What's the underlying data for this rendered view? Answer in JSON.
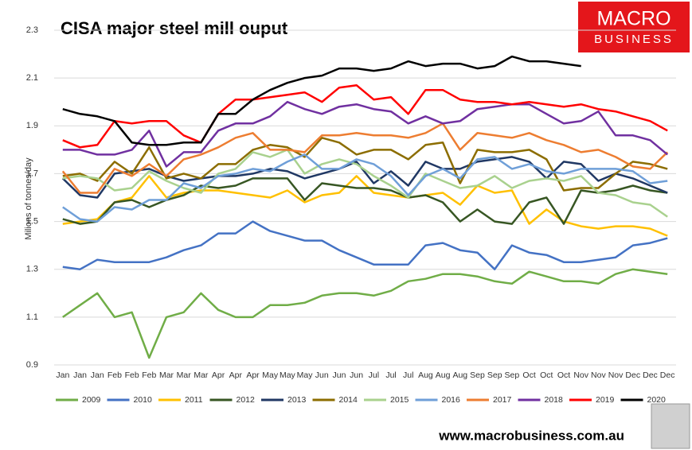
{
  "chart_data": {
    "type": "line",
    "title": "CISA major steel mill ouput",
    "y_label": "Milions of tonnes/day",
    "categories": [
      "Jan",
      "Jan",
      "Jan",
      "Feb",
      "Feb",
      "Feb",
      "Mar",
      "Mar",
      "Mar",
      "Apr",
      "Apr",
      "Apr",
      "May",
      "May",
      "May",
      "Jun",
      "Jun",
      "Jun",
      "Jul",
      "Jul",
      "Jul",
      "Aug",
      "Aug",
      "Aug",
      "Sep",
      "Sep",
      "Sep",
      "Oct",
      "Oct",
      "Oct",
      "Nov",
      "Nov",
      "Nov",
      "Dec",
      "Dec",
      "Dec"
    ],
    "ylim": [
      0.9,
      2.3
    ],
    "yticks": [
      0.9,
      1.1,
      1.3,
      1.5,
      1.7,
      1.9,
      2.1,
      2.3
    ],
    "grid": true,
    "legend": "bottom",
    "series": [
      {
        "name": "2009",
        "color": "#70ad47",
        "values": [
          1.1,
          1.15,
          1.2,
          1.1,
          1.12,
          0.93,
          1.1,
          1.12,
          1.2,
          1.13,
          1.1,
          1.1,
          1.15,
          1.15,
          1.16,
          1.19,
          1.2,
          1.2,
          1.19,
          1.21,
          1.25,
          1.26,
          1.28,
          1.28,
          1.27,
          1.25,
          1.24,
          1.29,
          1.27,
          1.25,
          1.25,
          1.24,
          1.28,
          1.3,
          1.29,
          1.28
        ]
      },
      {
        "name": "2010",
        "color": "#4472c4",
        "values": [
          1.31,
          1.3,
          1.34,
          1.33,
          1.33,
          1.33,
          1.35,
          1.38,
          1.4,
          1.45,
          1.45,
          1.5,
          1.46,
          1.44,
          1.42,
          1.42,
          1.38,
          1.35,
          1.32,
          1.32,
          1.32,
          1.4,
          1.41,
          1.38,
          1.37,
          1.3,
          1.4,
          1.37,
          1.36,
          1.33,
          1.33,
          1.34,
          1.35,
          1.4,
          1.41,
          1.43
        ]
      },
      {
        "name": "2011",
        "color": "#ffc000",
        "values": [
          1.49,
          1.5,
          1.51,
          1.58,
          1.6,
          1.69,
          1.6,
          1.62,
          1.63,
          1.63,
          1.62,
          1.61,
          1.6,
          1.63,
          1.58,
          1.61,
          1.62,
          1.69,
          1.62,
          1.61,
          1.6,
          1.61,
          1.62,
          1.57,
          1.65,
          1.62,
          1.63,
          1.49,
          1.55,
          1.5,
          1.48,
          1.47,
          1.48,
          1.48,
          1.47,
          1.44
        ]
      },
      {
        "name": "2012",
        "color": "#375623",
        "values": [
          1.51,
          1.49,
          1.5,
          1.58,
          1.59,
          1.56,
          1.59,
          1.61,
          1.65,
          1.64,
          1.65,
          1.68,
          1.68,
          1.68,
          1.59,
          1.66,
          1.65,
          1.64,
          1.64,
          1.63,
          1.6,
          1.61,
          1.58,
          1.5,
          1.55,
          1.5,
          1.49,
          1.58,
          1.6,
          1.49,
          1.63,
          1.62,
          1.63,
          1.65,
          1.63,
          1.62
        ]
      },
      {
        "name": "2013",
        "color": "#203864",
        "values": [
          1.68,
          1.61,
          1.6,
          1.7,
          1.71,
          1.72,
          1.69,
          1.67,
          1.68,
          1.69,
          1.69,
          1.7,
          1.72,
          1.71,
          1.68,
          1.7,
          1.72,
          1.75,
          1.66,
          1.71,
          1.65,
          1.75,
          1.72,
          1.72,
          1.75,
          1.76,
          1.77,
          1.75,
          1.68,
          1.75,
          1.74,
          1.67,
          1.7,
          1.68,
          1.65,
          1.62
        ]
      },
      {
        "name": "2014",
        "color": "#8c6d00",
        "values": [
          1.69,
          1.7,
          1.67,
          1.75,
          1.7,
          1.81,
          1.68,
          1.7,
          1.68,
          1.74,
          1.74,
          1.8,
          1.82,
          1.81,
          1.77,
          1.85,
          1.83,
          1.78,
          1.8,
          1.8,
          1.76,
          1.82,
          1.83,
          1.66,
          1.8,
          1.79,
          1.79,
          1.8,
          1.76,
          1.63,
          1.64,
          1.64,
          1.7,
          1.75,
          1.74,
          1.72
        ]
      },
      {
        "name": "2015",
        "color": "#a9d18e",
        "values": [
          1.68,
          1.69,
          1.68,
          1.63,
          1.64,
          1.71,
          1.67,
          1.64,
          1.62,
          1.7,
          1.72,
          1.79,
          1.77,
          1.8,
          1.7,
          1.74,
          1.76,
          1.74,
          1.69,
          1.65,
          1.6,
          1.7,
          1.67,
          1.64,
          1.65,
          1.69,
          1.64,
          1.67,
          1.68,
          1.67,
          1.69,
          1.62,
          1.61,
          1.58,
          1.57,
          1.52
        ]
      },
      {
        "name": "2016",
        "color": "#6f9fd8",
        "values": [
          1.56,
          1.51,
          1.5,
          1.56,
          1.55,
          1.59,
          1.59,
          1.66,
          1.64,
          1.69,
          1.7,
          1.72,
          1.71,
          1.75,
          1.78,
          1.72,
          1.72,
          1.76,
          1.74,
          1.69,
          1.61,
          1.69,
          1.72,
          1.68,
          1.76,
          1.77,
          1.72,
          1.74,
          1.71,
          1.7,
          1.72,
          1.72,
          1.72,
          1.71,
          1.66,
          1.67
        ]
      },
      {
        "name": "2017",
        "color": "#ed7d31",
        "values": [
          1.71,
          1.62,
          1.62,
          1.72,
          1.69,
          1.74,
          1.69,
          1.76,
          1.78,
          1.81,
          1.85,
          1.87,
          1.8,
          1.8,
          1.79,
          1.86,
          1.86,
          1.87,
          1.86,
          1.86,
          1.85,
          1.87,
          1.91,
          1.8,
          1.87,
          1.86,
          1.85,
          1.87,
          1.84,
          1.82,
          1.79,
          1.8,
          1.77,
          1.73,
          1.72,
          1.79
        ]
      },
      {
        "name": "2018",
        "color": "#7030a0",
        "values": [
          1.8,
          1.8,
          1.78,
          1.78,
          1.8,
          1.88,
          1.73,
          1.79,
          1.79,
          1.88,
          1.91,
          1.91,
          1.94,
          2.0,
          1.97,
          1.95,
          1.98,
          1.99,
          1.97,
          1.96,
          1.91,
          1.94,
          1.91,
          1.92,
          1.97,
          1.98,
          1.99,
          1.99,
          1.95,
          1.91,
          1.92,
          1.96,
          1.86,
          1.86,
          1.84,
          1.78
        ]
      },
      {
        "name": "2019",
        "color": "#ff0000",
        "values": [
          1.84,
          1.81,
          1.82,
          1.92,
          1.91,
          1.92,
          1.92,
          1.86,
          1.83,
          1.95,
          2.01,
          2.01,
          2.02,
          2.03,
          2.04,
          2.0,
          2.06,
          2.07,
          2.01,
          2.02,
          1.95,
          2.05,
          2.05,
          2.01,
          2.0,
          2.0,
          1.99,
          2.0,
          1.99,
          1.98,
          1.99,
          1.97,
          1.96,
          1.94,
          1.92,
          1.88
        ]
      },
      {
        "name": "2020",
        "color": "#000000",
        "values": [
          1.97,
          1.95,
          1.94,
          1.92,
          1.83,
          1.82,
          1.82,
          1.83,
          1.83,
          1.95,
          1.95,
          2.01,
          2.05,
          2.08,
          2.1,
          2.11,
          2.14,
          2.14,
          2.13,
          2.14,
          2.17,
          2.15,
          2.16,
          2.16,
          2.14,
          2.15,
          2.19,
          2.17,
          2.17,
          2.16,
          2.15,
          null,
          null,
          null,
          null,
          null
        ]
      }
    ]
  },
  "logo": {
    "line1": "MACRO",
    "line2": "BUSINESS"
  },
  "footer": "www.macrobusiness.com.au"
}
